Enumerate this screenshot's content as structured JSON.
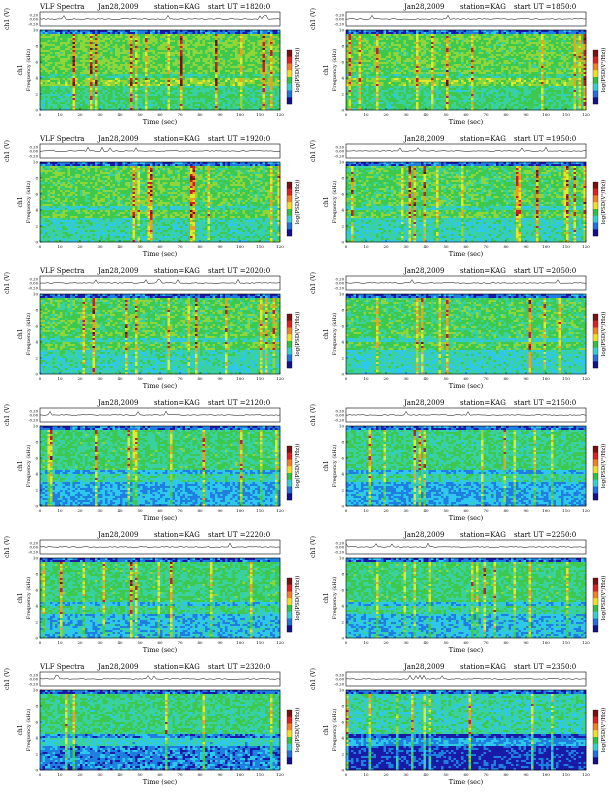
{
  "colors": {
    "spectrogram": [
      "#1a1aa8",
      "#1f7fe0",
      "#2ec8ee",
      "#39d1a0",
      "#3cc94e",
      "#8fd63a",
      "#e4e82a",
      "#f0a020",
      "#c82020",
      "#7a1010"
    ],
    "colorbar": [
      "#7a1010",
      "#e02020",
      "#f08020",
      "#f0e020",
      "#30c040",
      "#30d0d0",
      "#2070e0",
      "#101090"
    ]
  },
  "labels": {
    "title": "VLF Spectra",
    "date": "Jan28,2009",
    "station": "station=KAG",
    "start_prefix": "start  UT  =",
    "xlabel": "Time  (sec)",
    "ylabel_freq": "Frequency  (kHz)",
    "ylabel_ch": "ch1",
    "ylabel_voltage": "ch1 (V)",
    "colorbar_label": "log(PSD(V²/Hz))"
  },
  "chart_data": [
    {
      "type": "heatmap",
      "panel": 1,
      "show_title": true,
      "start_ut": "1820:0",
      "xlabel": "Time  (sec)",
      "ylabel": "Frequency  (kHz)",
      "xlim": [
        0,
        120
      ],
      "ylim": [
        0,
        10
      ],
      "x_ticks": [
        0,
        10,
        20,
        30,
        40,
        50,
        60,
        70,
        80,
        90,
        100,
        110,
        120
      ],
      "y_ticks": [
        0,
        2,
        4,
        6,
        8,
        10
      ],
      "voltage_ticks": [
        "0.20",
        "0.00",
        "-0.20"
      ],
      "intensity": [
        1.6,
        0.9
      ]
    },
    {
      "type": "heatmap",
      "panel": 2,
      "show_title": false,
      "start_ut": "1850:0",
      "xlabel": "Time  (sec)",
      "ylabel": "Frequency  (kHz)",
      "xlim": [
        0,
        120
      ],
      "ylim": [
        0,
        10
      ],
      "x_ticks": [
        0,
        10,
        20,
        30,
        40,
        50,
        60,
        70,
        80,
        90,
        100,
        110,
        120
      ],
      "y_ticks": [
        0,
        2,
        4,
        6,
        8,
        10
      ],
      "voltage_ticks": [
        "0.20",
        "0.00",
        "-0.20"
      ],
      "intensity": [
        1.5,
        0.9
      ]
    },
    {
      "type": "heatmap",
      "panel": 3,
      "show_title": true,
      "start_ut": "1920:0",
      "xlabel": "Time  (sec)",
      "ylabel": "Frequency  (kHz)",
      "xlim": [
        0,
        120
      ],
      "ylim": [
        0,
        10
      ],
      "x_ticks": [
        0,
        10,
        20,
        30,
        40,
        50,
        60,
        70,
        80,
        90,
        100,
        110,
        120
      ],
      "y_ticks": [
        0,
        2,
        4,
        6,
        8,
        10
      ],
      "voltage_ticks": [
        "0.20",
        "0.00",
        "-0.20"
      ],
      "intensity": [
        1.4,
        0.6
      ]
    },
    {
      "type": "heatmap",
      "panel": 4,
      "show_title": false,
      "start_ut": "1950:0",
      "xlabel": "Time  (sec)",
      "ylabel": "Frequency  (kHz)",
      "xlim": [
        0,
        120
      ],
      "ylim": [
        0,
        10
      ],
      "x_ticks": [
        0,
        10,
        20,
        30,
        40,
        50,
        60,
        70,
        80,
        90,
        100,
        110,
        120
      ],
      "y_ticks": [
        0,
        2,
        4,
        6,
        8,
        10
      ],
      "voltage_ticks": [
        "0.20",
        "0.00",
        "-0.20"
      ],
      "intensity": [
        1.3,
        0.5
      ]
    },
    {
      "type": "heatmap",
      "panel": 5,
      "show_title": true,
      "start_ut": "2020:0",
      "xlabel": "Time  (sec)",
      "ylabel": "Frequency  (kHz)",
      "xlim": [
        0,
        120
      ],
      "ylim": [
        0,
        10
      ],
      "x_ticks": [
        0,
        10,
        20,
        30,
        40,
        50,
        60,
        70,
        80,
        90,
        100,
        110,
        120
      ],
      "y_ticks": [
        0,
        2,
        4,
        6,
        8,
        10
      ],
      "voltage_ticks": [
        "0.20",
        "0.00",
        "-0.20"
      ],
      "intensity": [
        1.3,
        0.5
      ]
    },
    {
      "type": "heatmap",
      "panel": 6,
      "show_title": false,
      "start_ut": "2050:0",
      "xlabel": "Time  (sec)",
      "ylabel": "Frequency  (kHz)",
      "xlim": [
        0,
        120
      ],
      "ylim": [
        0,
        10
      ],
      "x_ticks": [
        0,
        10,
        20,
        30,
        40,
        50,
        60,
        70,
        80,
        90,
        100,
        110,
        120
      ],
      "y_ticks": [
        0,
        2,
        4,
        6,
        8,
        10
      ],
      "voltage_ticks": [
        "0.20",
        "0.00",
        "-0.20"
      ],
      "intensity": [
        1.2,
        0.4
      ]
    },
    {
      "type": "heatmap",
      "panel": 7,
      "show_title": false,
      "start_ut": "2120:0",
      "xlabel": "Time  (sec)",
      "ylabel": "Frequency  (kHz)",
      "xlim": [
        0,
        120
      ],
      "ylim": [
        0,
        10
      ],
      "x_ticks": [
        0,
        10,
        20,
        30,
        40,
        50,
        60,
        70,
        80,
        90,
        100,
        110,
        120
      ],
      "y_ticks": [
        0,
        2,
        4,
        6,
        8,
        10
      ],
      "voltage_ticks": [
        "0.20",
        "0.00",
        "-0.20"
      ],
      "intensity": [
        1.0,
        -0.3
      ]
    },
    {
      "type": "heatmap",
      "panel": 8,
      "show_title": false,
      "start_ut": "2150:0",
      "xlabel": "Time  (sec)",
      "ylabel": "Frequency  (kHz)",
      "xlim": [
        0,
        120
      ],
      "ylim": [
        0,
        10
      ],
      "x_ticks": [
        0,
        10,
        20,
        30,
        40,
        50,
        60,
        70,
        80,
        90,
        100,
        110,
        120
      ],
      "y_ticks": [
        0,
        2,
        4,
        6,
        8,
        10
      ],
      "voltage_ticks": [
        "0.20",
        "0.00",
        "-0.20"
      ],
      "intensity": [
        0.9,
        -0.3
      ]
    },
    {
      "type": "heatmap",
      "panel": 9,
      "show_title": false,
      "start_ut": "2220:0",
      "xlabel": "Time  (sec)",
      "ylabel": "Frequency  (kHz)",
      "xlim": [
        0,
        120
      ],
      "ylim": [
        0,
        10
      ],
      "x_ticks": [
        0,
        10,
        20,
        30,
        40,
        50,
        60,
        70,
        80,
        90,
        100,
        110,
        120
      ],
      "y_ticks": [
        0,
        2,
        4,
        6,
        8,
        10
      ],
      "voltage_ticks": [
        "0.20",
        "0.00",
        "-0.20"
      ],
      "intensity": [
        1.0,
        -0.1
      ]
    },
    {
      "type": "heatmap",
      "panel": 10,
      "show_title": false,
      "start_ut": "2250:0",
      "xlabel": "Time  (sec)",
      "ylabel": "Frequency  (kHz)",
      "xlim": [
        0,
        120
      ],
      "ylim": [
        0,
        10
      ],
      "x_ticks": [
        0,
        10,
        20,
        30,
        40,
        50,
        60,
        70,
        80,
        90,
        100,
        110,
        120
      ],
      "y_ticks": [
        0,
        2,
        4,
        6,
        8,
        10
      ],
      "voltage_ticks": [
        "0.20",
        "0.00",
        "-0.20"
      ],
      "intensity": [
        1.0,
        -0.1
      ]
    },
    {
      "type": "heatmap",
      "panel": 11,
      "show_title": true,
      "start_ut": "2320:0",
      "xlabel": "Time  (sec)",
      "ylabel": "Frequency  (kHz)",
      "xlim": [
        0,
        120
      ],
      "ylim": [
        0,
        10
      ],
      "x_ticks": [
        0,
        10,
        20,
        30,
        40,
        50,
        60,
        70,
        80,
        90,
        100,
        110,
        120
      ],
      "y_ticks": [
        0,
        2,
        4,
        6,
        8,
        10
      ],
      "voltage_ticks": [
        "0.20",
        "0.00",
        "-0.20"
      ],
      "intensity": [
        0.9,
        -0.6
      ]
    },
    {
      "type": "heatmap",
      "panel": 12,
      "show_title": false,
      "start_ut": "2350:0",
      "xlabel": "Time  (sec)",
      "ylabel": "Frequency  (kHz)",
      "xlim": [
        0,
        120
      ],
      "ylim": [
        0,
        10
      ],
      "x_ticks": [
        0,
        10,
        20,
        30,
        40,
        50,
        60,
        70,
        80,
        90,
        100,
        110,
        120
      ],
      "y_ticks": [
        0,
        2,
        4,
        6,
        8,
        10
      ],
      "voltage_ticks": [
        "0.20",
        "0.00",
        "-0.20"
      ],
      "intensity": [
        0.6,
        -1.2
      ]
    }
  ]
}
